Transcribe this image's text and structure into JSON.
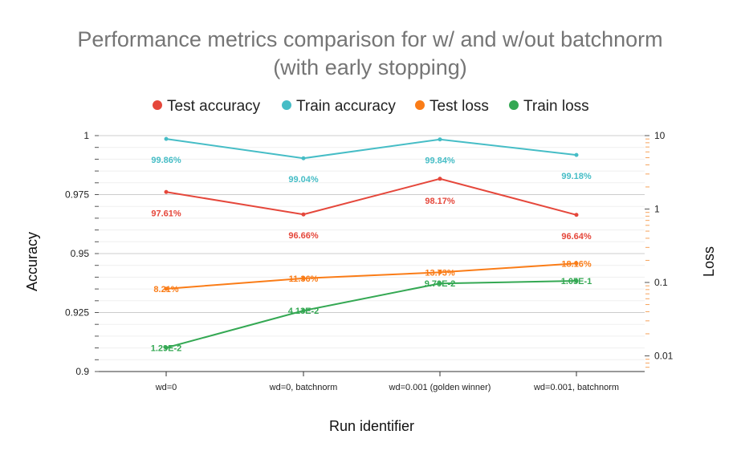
{
  "chart_data": {
    "type": "line",
    "title_line1": "Performance metrics comparison for w/ and w/out batchnorm",
    "title_line2": "(with early stopping)",
    "xlabel": "Run identifier",
    "ylabel": "Accuracy",
    "y2label": "Loss",
    "categories": [
      "wd=0",
      "wd=0, batchnorm",
      "wd=0.001 (golden winner)",
      "wd=0.001, batchnorm"
    ],
    "ylim": [
      0.9,
      1.0
    ],
    "y_ticks": [
      "0.9",
      "0.925",
      "0.95",
      "0.975",
      "1"
    ],
    "y_tick_values": [
      0.9,
      0.925,
      0.95,
      0.975,
      1.0
    ],
    "y2_scale": "log",
    "y2lim": [
      0.006,
      11
    ],
    "y2_ticks": [
      "0.01",
      "0.1",
      "1",
      "10"
    ],
    "y2_tick_values": [
      0.01,
      0.1,
      1,
      10
    ],
    "legend_position": "top",
    "grid": true,
    "series": [
      {
        "name": "Test accuracy",
        "axis": "left",
        "color": "#e5473b",
        "values": [
          0.9761,
          0.9666,
          0.9817,
          0.9664
        ],
        "labels": [
          "97.61%",
          "96.66%",
          "98.17%",
          "96.64%"
        ]
      },
      {
        "name": "Train accuracy",
        "axis": "left",
        "color": "#46bdc6",
        "values": [
          0.9986,
          0.9904,
          0.9984,
          0.9918
        ],
        "labels": [
          "99.86%",
          "99.04%",
          "99.84%",
          "99.18%"
        ]
      },
      {
        "name": "Test loss",
        "axis": "right",
        "color": "#fa7c17",
        "values": [
          0.0821,
          0.1136,
          0.1373,
          0.1816
        ],
        "labels": [
          "8.21%",
          "11.36%",
          "13.73%",
          "18.16%"
        ]
      },
      {
        "name": "Train loss",
        "axis": "right",
        "color": "#34a853",
        "values": [
          0.0129,
          0.0413,
          0.097,
          0.105
        ],
        "labels": [
          "1.29E-2",
          "4.13E-2",
          "9.70E-2",
          "1.05E-1"
        ]
      }
    ]
  }
}
